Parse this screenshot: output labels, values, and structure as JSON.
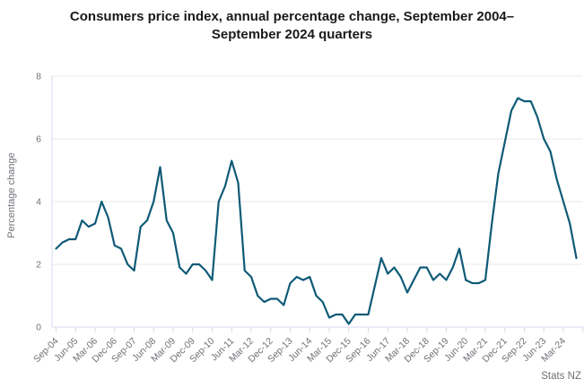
{
  "chart_data": {
    "type": "line",
    "title": "Consumers price index, annual percentage change, September 2004–September 2024 quarters",
    "xlabel": "",
    "ylabel": "Percentage change",
    "source": "Stats NZ",
    "ylim": [
      0,
      8
    ],
    "yticks": [
      0,
      2,
      4,
      6,
      8
    ],
    "grid": "horizontal",
    "legend": "none",
    "x_tick_every": 3,
    "x_tick_labels": [
      "Sep-04",
      "Jun-05",
      "Mar-06",
      "Dec-06",
      "Sep-07",
      "Jun-08",
      "Mar-09",
      "Dec-09",
      "Sep-10",
      "Jun-11",
      "Mar-12",
      "Dec-12",
      "Sep-13",
      "Jun-14",
      "Mar-15",
      "Dec-15",
      "Sep-16",
      "Jun-17",
      "Mar-18",
      "Dec-18",
      "Sep-19",
      "Jun-20",
      "Mar-21",
      "Dec-21",
      "Sep-22",
      "Jun-23",
      "Mar-24"
    ],
    "categories": [
      "Sep-04",
      "Dec-04",
      "Mar-05",
      "Jun-05",
      "Sep-05",
      "Dec-05",
      "Mar-06",
      "Jun-06",
      "Sep-06",
      "Dec-06",
      "Mar-07",
      "Jun-07",
      "Sep-07",
      "Dec-07",
      "Mar-08",
      "Jun-08",
      "Sep-08",
      "Dec-08",
      "Mar-09",
      "Jun-09",
      "Sep-09",
      "Dec-09",
      "Mar-10",
      "Jun-10",
      "Sep-10",
      "Dec-10",
      "Mar-11",
      "Jun-11",
      "Sep-11",
      "Dec-11",
      "Mar-12",
      "Jun-12",
      "Sep-12",
      "Dec-12",
      "Mar-13",
      "Jun-13",
      "Sep-13",
      "Dec-13",
      "Mar-14",
      "Jun-14",
      "Sep-14",
      "Dec-14",
      "Mar-15",
      "Jun-15",
      "Sep-15",
      "Dec-15",
      "Mar-16",
      "Jun-16",
      "Sep-16",
      "Dec-16",
      "Mar-17",
      "Jun-17",
      "Sep-17",
      "Dec-17",
      "Mar-18",
      "Jun-18",
      "Sep-18",
      "Dec-18",
      "Mar-19",
      "Jun-19",
      "Sep-19",
      "Dec-19",
      "Mar-20",
      "Jun-20",
      "Sep-20",
      "Dec-20",
      "Mar-21",
      "Jun-21",
      "Sep-21",
      "Dec-21",
      "Mar-22",
      "Jun-22",
      "Sep-22",
      "Dec-22",
      "Mar-23",
      "Jun-23",
      "Sep-23",
      "Dec-23",
      "Mar-24",
      "Jun-24",
      "Sep-24"
    ],
    "values": [
      2.5,
      2.7,
      2.8,
      2.8,
      3.4,
      3.2,
      3.3,
      4.0,
      3.5,
      2.6,
      2.5,
      2.0,
      1.8,
      3.2,
      3.4,
      4.0,
      5.1,
      3.4,
      3.0,
      1.9,
      1.7,
      2.0,
      2.0,
      1.8,
      1.5,
      4.0,
      4.5,
      5.3,
      4.6,
      1.8,
      1.6,
      1.0,
      0.8,
      0.9,
      0.9,
      0.7,
      1.4,
      1.6,
      1.5,
      1.6,
      1.0,
      0.8,
      0.3,
      0.4,
      0.4,
      0.1,
      0.4,
      0.4,
      0.4,
      1.3,
      2.2,
      1.7,
      1.9,
      1.6,
      1.1,
      1.5,
      1.9,
      1.9,
      1.5,
      1.7,
      1.5,
      1.9,
      2.5,
      1.5,
      1.4,
      1.4,
      1.5,
      3.3,
      4.9,
      5.9,
      6.9,
      7.3,
      7.2,
      7.2,
      6.7,
      6.0,
      5.6,
      4.7,
      4.0,
      3.3,
      2.2
    ],
    "colors": {
      "line": "#0e5a77",
      "grid": "#e9e9e9",
      "axis": "#d7daec",
      "tick_text": "#6e7176",
      "title_text": "#1a1a1a"
    }
  }
}
